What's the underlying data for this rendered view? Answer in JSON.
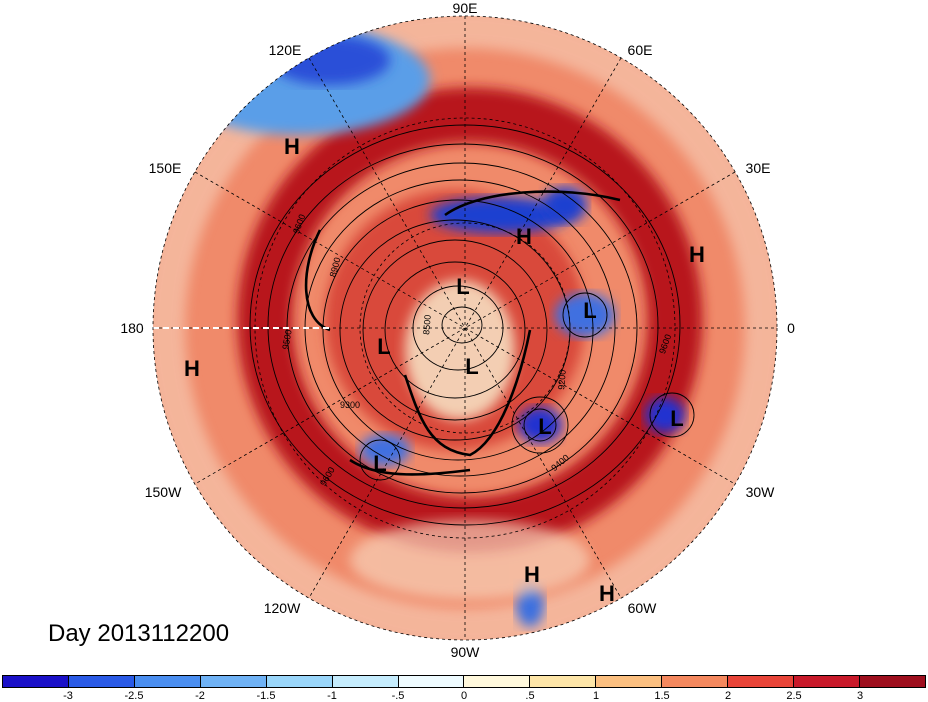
{
  "title": "Day 2013112200",
  "longitude_labels": [
    "90E",
    "60E",
    "120E",
    "150E",
    "30E",
    "180",
    "0",
    "150W",
    "30W",
    "120W",
    "60W",
    "90W"
  ],
  "pressure_centers": [
    {
      "label": "H"
    },
    {
      "label": "H"
    },
    {
      "label": "H"
    },
    {
      "label": "H"
    },
    {
      "label": "H"
    },
    {
      "label": "H"
    },
    {
      "label": "L"
    },
    {
      "label": "L"
    },
    {
      "label": "L"
    },
    {
      "label": "L"
    },
    {
      "label": "L"
    },
    {
      "label": "L"
    },
    {
      "label": "L"
    }
  ],
  "contour_labels": [
    "9600",
    "8900",
    "8500",
    "9300",
    "9600",
    "9400",
    "9200",
    "9600",
    "9500"
  ],
  "colorbar": {
    "colors": [
      "#1a10c8",
      "#2a5ae6",
      "#4a8ef0",
      "#6fb2f5",
      "#9ad6fa",
      "#c5ecfd",
      "#eefbff",
      "#fff8dc",
      "#fde5a8",
      "#fbbf80",
      "#f4885e",
      "#e84438",
      "#c8192a",
      "#9e0f1e"
    ],
    "labels": [
      "-3",
      "-2.5",
      "-2",
      "-1.5",
      "-1",
      "-.5",
      "0",
      ".5",
      "1",
      "1.5",
      "2",
      "2.5",
      "3"
    ]
  }
}
